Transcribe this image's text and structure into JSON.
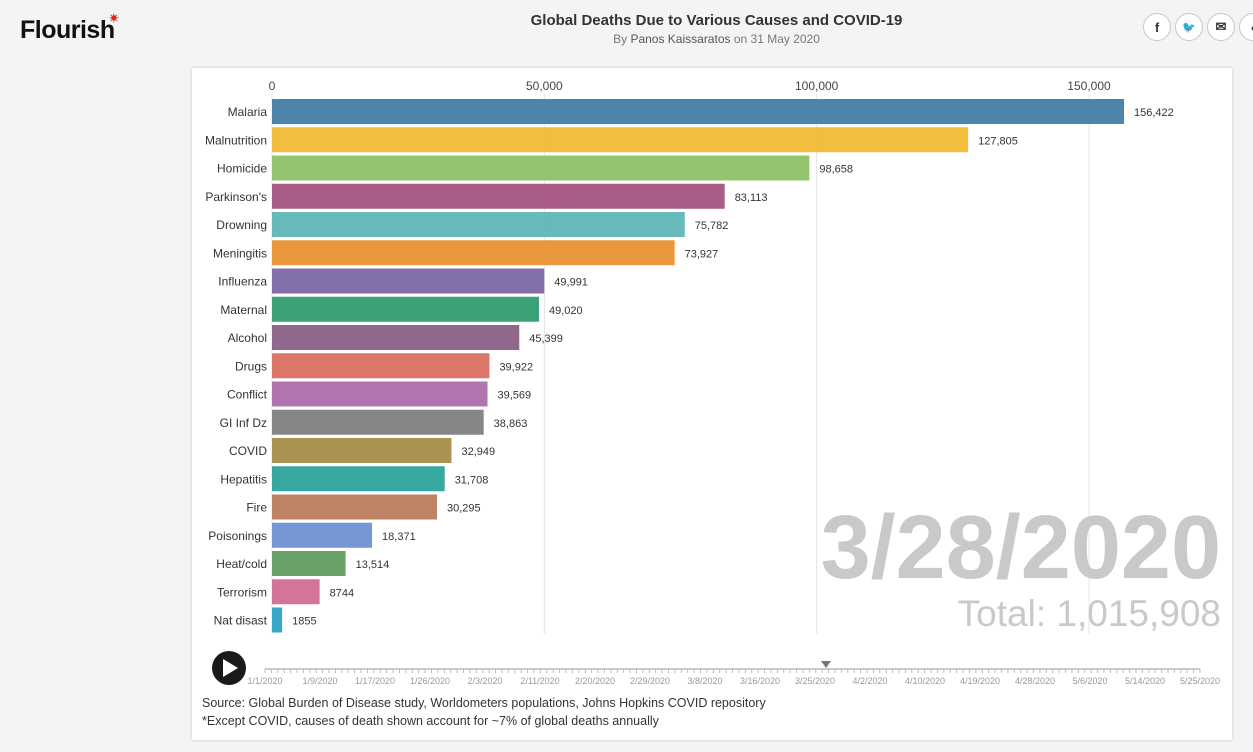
{
  "brand": {
    "name": "Flourish",
    "star": "✷"
  },
  "header": {
    "title": "Global Deaths Due to Various Causes and COVID-19",
    "byline_prefix": "By",
    "author": "Panos Kaissaratos",
    "date_text": "on 31 May 2020"
  },
  "share": [
    {
      "name": "facebook-icon",
      "glyph": "f"
    },
    {
      "name": "twitter-icon",
      "glyph": "🐦"
    },
    {
      "name": "email-icon",
      "glyph": "✉"
    },
    {
      "name": "embed-icon",
      "glyph": "‹"
    }
  ],
  "colors": {
    "grid": "#e4e4e4",
    "counter": "#c9c9c9",
    "label": "#333333",
    "timeline": "#999999"
  },
  "chart_data": {
    "type": "bar",
    "orientation": "horizontal",
    "categories": [
      "Malaria",
      "Malnutrition",
      "Homicide",
      "Parkinson's",
      "Drowning",
      "Meningitis",
      "Influenza",
      "Maternal",
      "Alcohol",
      "Drugs",
      "Conflict",
      "GI Inf Dz",
      "COVID",
      "Hepatitis",
      "Fire",
      "Poisonings",
      "Heat/cold",
      "Terrorism",
      "Nat disast"
    ],
    "values": [
      156422,
      127805,
      98658,
      83113,
      75782,
      73927,
      49991,
      49020,
      45399,
      39922,
      39569,
      38863,
      32949,
      31708,
      30295,
      18371,
      13514,
      8744,
      1855
    ],
    "value_labels": [
      "156,422",
      "127,805",
      "98,658",
      "83,113",
      "75,782",
      "73,927",
      "49,991",
      "49,020",
      "45,399",
      "39,922",
      "39,569",
      "38,863",
      "32,949",
      "31,708",
      "30,295",
      "18,371",
      "13,514",
      "8744",
      "1855"
    ],
    "bar_colors": [
      "#3f7ba2",
      "#f2b82e",
      "#8cc063",
      "#a3507c",
      "#5bb4b5",
      "#e8902e",
      "#7a64a4",
      "#2e9a6d",
      "#875c82",
      "#d96c5c",
      "#aa6aa8",
      "#7d7d7d",
      "#a58a43",
      "#28a199",
      "#b97a58",
      "#6c8ed1",
      "#5e9a5e",
      "#cf6b90",
      "#2aa0c3"
    ],
    "xlim": [
      0,
      160000
    ],
    "xticks": [
      0,
      50000,
      100000,
      150000
    ],
    "xtick_labels": [
      "0",
      "50,000",
      "100,000",
      "150,000"
    ],
    "current_date": "3/28/2020",
    "total_text": "Total: 1,015,908",
    "timeline_labels": [
      "1/1/2020",
      "1/9/2020",
      "1/17/2020",
      "1/26/2020",
      "2/3/2020",
      "2/11/2020",
      "2/20/2020",
      "2/29/2020",
      "3/8/2020",
      "3/16/2020",
      "3/25/2020",
      "4/2/2020",
      "4/10/2020",
      "4/19/2020",
      "4/28/2020",
      "5/6/2020",
      "5/14/2020",
      "5/25/2020"
    ],
    "timeline_progress": 0.6
  },
  "footer": {
    "source": "Source: Global Burden of Disease study, Worldometers populations, Johns Hopkins COVID repository",
    "note": "*Except COVID, causes of death shown account for ~7% of global deaths annually"
  }
}
